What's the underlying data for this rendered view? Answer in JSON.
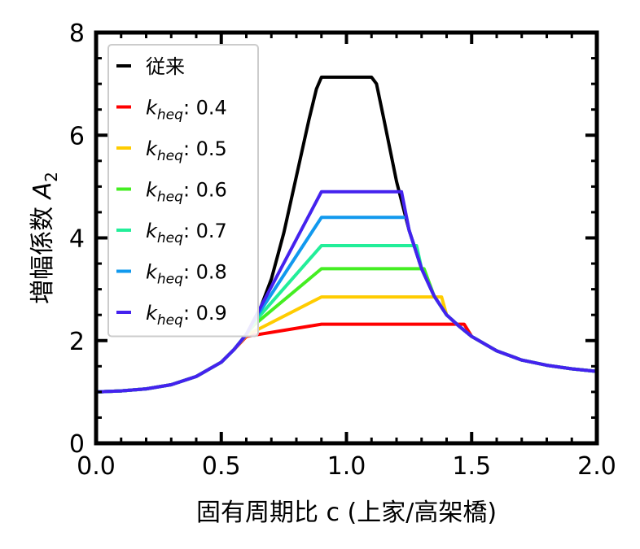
{
  "chart_data": {
    "type": "line",
    "xlabel": "固有周期比 c (上家/高架橋)",
    "ylabel_prefix": "増幅係数 ",
    "ylabel_var": "A",
    "ylabel_sub": "2",
    "xlim": [
      0.0,
      2.0
    ],
    "ylim": [
      0,
      8
    ],
    "xticks": [
      "0.0",
      "0.5",
      "1.0",
      "1.5",
      "2.0"
    ],
    "yticks": [
      "0",
      "2",
      "4",
      "6",
      "8"
    ],
    "grid": false,
    "legend_position": "top-left",
    "series": [
      {
        "name": "従来",
        "color": "#000000",
        "x": [
          0.0,
          0.1,
          0.2,
          0.3,
          0.4,
          0.5,
          0.55,
          0.6,
          0.65,
          0.7,
          0.75,
          0.8,
          0.85,
          0.88,
          0.9,
          1.1,
          1.12,
          1.15,
          1.2,
          1.25,
          1.3,
          1.35,
          1.4,
          1.45,
          1.5,
          1.6,
          1.7,
          1.8,
          1.9,
          2.0
        ],
        "y": [
          1.0,
          1.02,
          1.06,
          1.14,
          1.3,
          1.58,
          1.82,
          2.12,
          2.55,
          3.2,
          4.1,
          5.2,
          6.3,
          6.9,
          7.13,
          7.13,
          7.0,
          6.3,
          5.1,
          4.15,
          3.4,
          2.87,
          2.5,
          2.28,
          2.08,
          1.8,
          1.62,
          1.52,
          1.45,
          1.4
        ]
      },
      {
        "name_var": "k",
        "name_sub": "heq",
        "name_value": ": 0.4",
        "color": "#ff0000",
        "x": [
          0.0,
          0.1,
          0.2,
          0.3,
          0.4,
          0.5,
          0.55,
          0.6,
          0.9,
          1.47,
          1.5,
          1.6,
          1.7,
          1.8,
          1.9,
          2.0
        ],
        "y": [
          1.0,
          1.02,
          1.06,
          1.14,
          1.3,
          1.58,
          1.82,
          2.08,
          2.32,
          2.32,
          2.08,
          1.8,
          1.62,
          1.52,
          1.45,
          1.4
        ]
      },
      {
        "name_var": "k",
        "name_sub": "heq",
        "name_value": ": 0.5",
        "color": "#ffcc00",
        "x": [
          0.0,
          0.1,
          0.2,
          0.3,
          0.4,
          0.5,
          0.55,
          0.6,
          0.9,
          1.38,
          1.4,
          1.45,
          1.5,
          1.6,
          1.7,
          1.8,
          1.9,
          2.0
        ],
        "y": [
          1.0,
          1.02,
          1.06,
          1.14,
          1.3,
          1.58,
          1.82,
          2.1,
          2.85,
          2.85,
          2.5,
          2.28,
          2.08,
          1.8,
          1.62,
          1.52,
          1.45,
          1.4
        ]
      },
      {
        "name_var": "k",
        "name_sub": "heq",
        "name_value": ": 0.6",
        "color": "#44ee22",
        "x": [
          0.0,
          0.1,
          0.2,
          0.3,
          0.4,
          0.5,
          0.55,
          0.6,
          0.63,
          0.9,
          1.31,
          1.35,
          1.4,
          1.45,
          1.5,
          1.6,
          1.7,
          1.8,
          1.9,
          2.0
        ],
        "y": [
          1.0,
          1.02,
          1.06,
          1.14,
          1.3,
          1.58,
          1.82,
          2.12,
          2.3,
          3.4,
          3.4,
          2.87,
          2.5,
          2.28,
          2.08,
          1.8,
          1.62,
          1.52,
          1.45,
          1.4
        ]
      },
      {
        "name_var": "k",
        "name_sub": "heq",
        "name_value": ": 0.7",
        "color": "#22ee99",
        "x": [
          0.0,
          0.1,
          0.2,
          0.3,
          0.4,
          0.5,
          0.55,
          0.6,
          0.63,
          0.9,
          1.28,
          1.3,
          1.35,
          1.4,
          1.45,
          1.5,
          1.6,
          1.7,
          1.8,
          1.9,
          2.0
        ],
        "y": [
          1.0,
          1.02,
          1.06,
          1.14,
          1.3,
          1.58,
          1.82,
          2.12,
          2.35,
          3.85,
          3.85,
          3.4,
          2.87,
          2.5,
          2.28,
          2.08,
          1.8,
          1.62,
          1.52,
          1.45,
          1.4
        ]
      },
      {
        "name_var": "k",
        "name_sub": "heq",
        "name_value": ": 0.8",
        "color": "#1199ee",
        "x": [
          0.0,
          0.1,
          0.2,
          0.3,
          0.4,
          0.5,
          0.55,
          0.6,
          0.63,
          0.9,
          1.24,
          1.25,
          1.3,
          1.35,
          1.4,
          1.45,
          1.5,
          1.6,
          1.7,
          1.8,
          1.9,
          2.0
        ],
        "y": [
          1.0,
          1.02,
          1.06,
          1.14,
          1.3,
          1.58,
          1.82,
          2.12,
          2.38,
          4.4,
          4.4,
          4.15,
          3.4,
          2.87,
          2.5,
          2.28,
          2.08,
          1.8,
          1.62,
          1.52,
          1.45,
          1.4
        ]
      },
      {
        "name_var": "k",
        "name_sub": "heq",
        "name_value": ": 0.9",
        "color": "#4422ee",
        "x": [
          0.0,
          0.1,
          0.2,
          0.3,
          0.4,
          0.5,
          0.55,
          0.6,
          0.63,
          0.9,
          1.22,
          1.25,
          1.3,
          1.35,
          1.4,
          1.45,
          1.5,
          1.6,
          1.7,
          1.8,
          1.9,
          2.0
        ],
        "y": [
          1.0,
          1.02,
          1.06,
          1.14,
          1.3,
          1.58,
          1.82,
          2.12,
          2.4,
          4.9,
          4.9,
          4.15,
          3.4,
          2.87,
          2.5,
          2.28,
          2.08,
          1.8,
          1.62,
          1.52,
          1.45,
          1.4
        ]
      }
    ]
  }
}
